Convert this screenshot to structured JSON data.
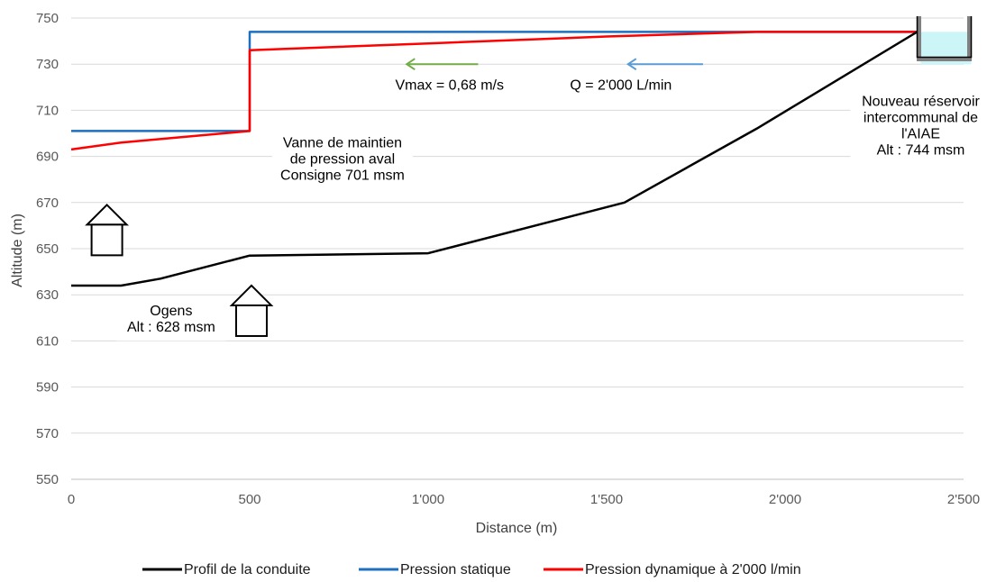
{
  "chart_data": {
    "type": "line",
    "title": "",
    "xlabel": "Distance (m)",
    "ylabel": "Altitude (m)",
    "xlim": [
      0,
      2500
    ],
    "ylim": [
      550,
      750
    ],
    "x_ticks": [
      {
        "value": 0,
        "label": "0"
      },
      {
        "value": 500,
        "label": "500"
      },
      {
        "value": 1000,
        "label": "1'000"
      },
      {
        "value": 1500,
        "label": "1'500"
      },
      {
        "value": 2000,
        "label": "2'000"
      },
      {
        "value": 2500,
        "label": "2'500"
      }
    ],
    "y_ticks": [
      {
        "value": 550,
        "label": "550"
      },
      {
        "value": 570,
        "label": "570"
      },
      {
        "value": 590,
        "label": "590"
      },
      {
        "value": 610,
        "label": "610"
      },
      {
        "value": 630,
        "label": "630"
      },
      {
        "value": 650,
        "label": "650"
      },
      {
        "value": 670,
        "label": "670"
      },
      {
        "value": 690,
        "label": "690"
      },
      {
        "value": 710,
        "label": "710"
      },
      {
        "value": 730,
        "label": "730"
      },
      {
        "value": 750,
        "label": "750"
      }
    ],
    "grid": "horizontal",
    "legend_position": "bottom",
    "series": [
      {
        "name": "Profil de la conduite",
        "color": "#000000",
        "points": [
          [
            0,
            634
          ],
          [
            140,
            634
          ],
          [
            250,
            637
          ],
          [
            500,
            647
          ],
          [
            1000,
            648
          ],
          [
            1550,
            670
          ],
          [
            1920,
            702
          ],
          [
            2370,
            744
          ]
        ]
      },
      {
        "name": "Pression statique",
        "color": "#1f6fc1",
        "points": [
          [
            0,
            701
          ],
          [
            500,
            701
          ],
          [
            500,
            744
          ],
          [
            2370,
            744
          ]
        ]
      },
      {
        "name": "Pression dynamique à 2'000 l/min",
        "color": "#ff0000",
        "points": [
          [
            0,
            693
          ],
          [
            140,
            696
          ],
          [
            500,
            701
          ],
          [
            500,
            736
          ],
          [
            1000,
            739
          ],
          [
            1500,
            742
          ],
          [
            1920,
            744
          ],
          [
            2370,
            744
          ]
        ]
      }
    ],
    "annotations": [
      {
        "name": "annotation-vanne",
        "lines": [
          "Vanne de maintien",
          "de pression aval",
          "Consigne 701 msm"
        ],
        "x": 760,
        "y": 694
      },
      {
        "name": "annotation-ogens",
        "lines": [
          "Ogens",
          "Alt : 628 msm"
        ],
        "x": 280,
        "y": 621
      },
      {
        "name": "annotation-reservoir",
        "lines": [
          "Nouveau réservoir",
          "intercommunal de",
          "l'AIAE",
          "Alt : 744 msm"
        ],
        "x": 2380,
        "y": 712
      },
      {
        "name": "annotation-vmax",
        "lines": [
          "Vmax = 0,68 m/s"
        ],
        "x": 1060,
        "y": 719
      },
      {
        "name": "annotation-debit",
        "lines": [
          "Q = 2'000 L/min"
        ],
        "x": 1540,
        "y": 719
      }
    ],
    "flow_arrows": [
      {
        "name": "vmax-arrow",
        "color": "#70ad47",
        "x_from": 1140,
        "x_to": 940,
        "y": 730
      },
      {
        "name": "debit-arrow",
        "color": "#5b9bd5",
        "x_from": 1770,
        "x_to": 1560,
        "y": 730
      }
    ],
    "house_icons": [
      {
        "name": "house-icon-upper",
        "x": 100,
        "y": 669
      },
      {
        "name": "house-icon-lower",
        "x": 505,
        "y": 634
      }
    ],
    "reservoir": {
      "x": 2370,
      "level": 744,
      "water_color": "#ccf5f8"
    }
  }
}
